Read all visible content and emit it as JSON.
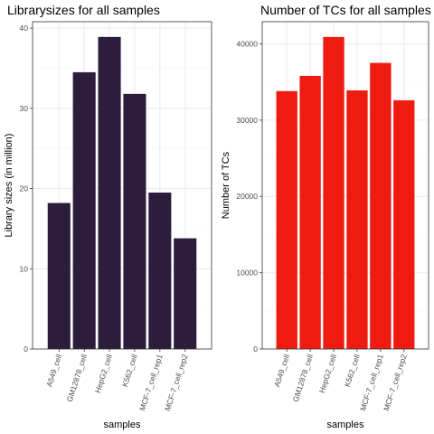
{
  "chart_data": [
    {
      "type": "bar",
      "title": "Librarysizes for all samples",
      "xlabel": "samples",
      "ylabel": "Library sizes (in million)",
      "categories": [
        "A549_cell",
        "GM12878_cell",
        "HepG2_cell",
        "K562_cell",
        "MCF-7_cell_rep1",
        "MCF-7_cell_rep2"
      ],
      "values": [
        18.2,
        34.5,
        38.9,
        31.8,
        19.5,
        13.8
      ],
      "ylim": [
        0,
        40.8
      ],
      "yticks": [
        0,
        10,
        20,
        30,
        40
      ],
      "bar_color": "#2b1d3b",
      "grid": true,
      "legend": "none"
    },
    {
      "type": "bar",
      "title": "Number of TCs for all samples",
      "xlabel": "samples",
      "ylabel": "Number of TCs",
      "categories": [
        "A549_cell",
        "GM12878_cell",
        "HepG2_cell",
        "K562_cell",
        "MCF-7_cell_rep1",
        "MCF-7_cell_rep2"
      ],
      "values": [
        33800,
        35800,
        40900,
        33900,
        37500,
        32600
      ],
      "ylim": [
        0,
        42900
      ],
      "yticks": [
        0,
        10000,
        20000,
        30000,
        40000
      ],
      "bar_color": "#ee1b10",
      "grid": true,
      "legend": "none"
    }
  ]
}
